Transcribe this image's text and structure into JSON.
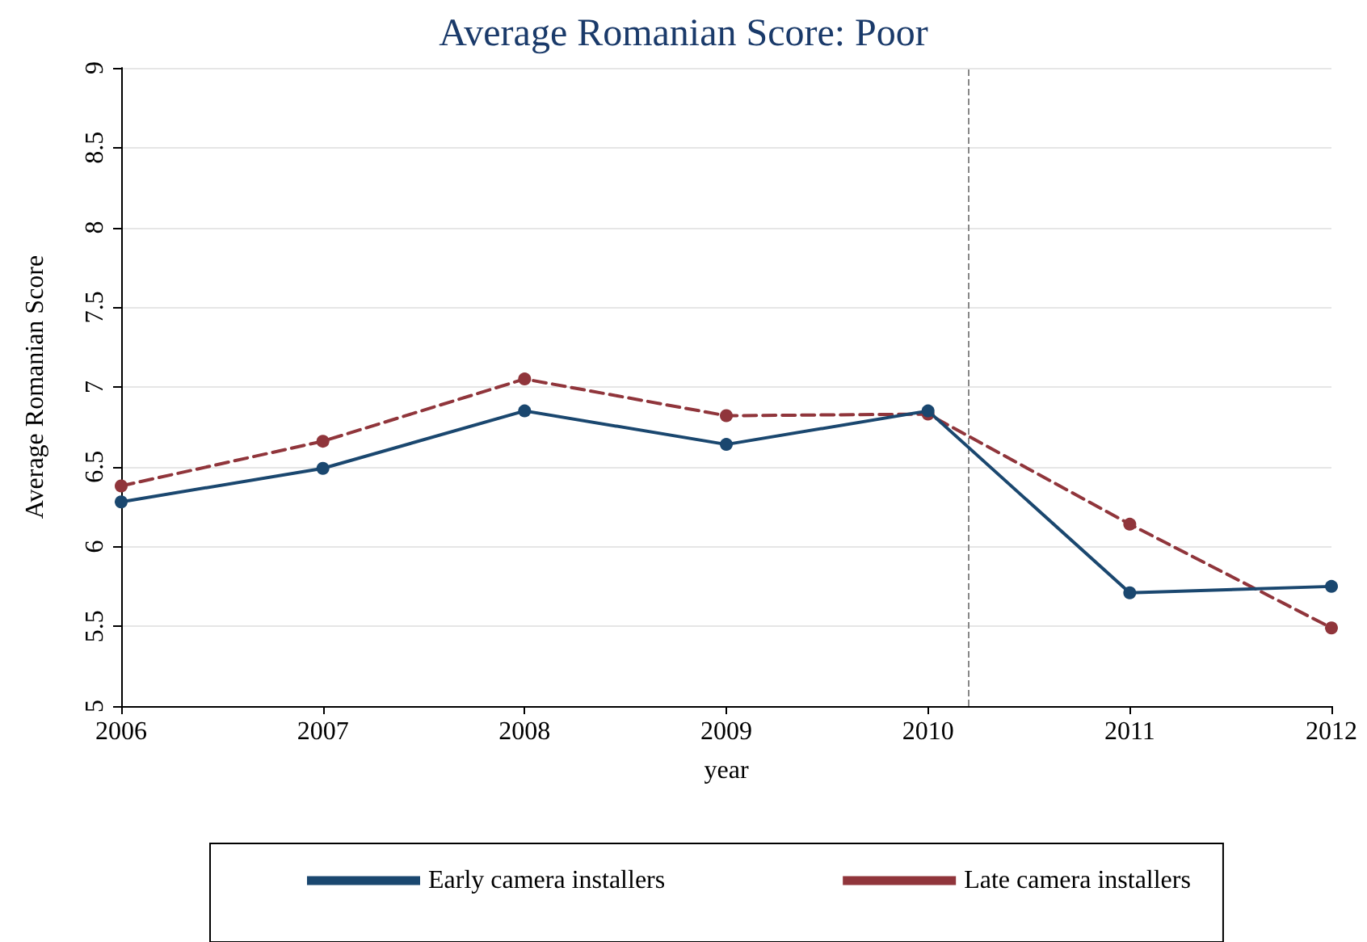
{
  "chart_data": {
    "type": "line",
    "title": "Average Romanian Score: Poor",
    "xlabel": "year",
    "ylabel": "Average Romanian Score",
    "x": [
      2006,
      2007,
      2008,
      2009,
      2010,
      2011,
      2012
    ],
    "series": [
      {
        "name": "Early camera installers",
        "color": "#1a476f",
        "line_style": "solid",
        "values": [
          6.28,
          6.49,
          6.85,
          6.64,
          6.85,
          5.71,
          5.75
        ]
      },
      {
        "name": "Late camera installers",
        "color": "#90353b",
        "line_style": "dashed",
        "values": [
          6.38,
          6.66,
          7.05,
          6.82,
          6.83,
          6.14,
          5.49
        ]
      }
    ],
    "xlim": [
      2006,
      2012
    ],
    "xticks": [
      2006,
      2007,
      2008,
      2009,
      2010,
      2011,
      2012
    ],
    "ylim": [
      5,
      9
    ],
    "yticks": [
      5,
      5.5,
      6,
      6.5,
      7,
      7.5,
      8,
      8.5,
      9
    ],
    "ref_lines": [
      {
        "axis": "x",
        "value": 2010.2,
        "color": "#888888",
        "line_style": "dashed"
      }
    ],
    "grid": "y",
    "legend": "bottom",
    "marker": "circle"
  }
}
